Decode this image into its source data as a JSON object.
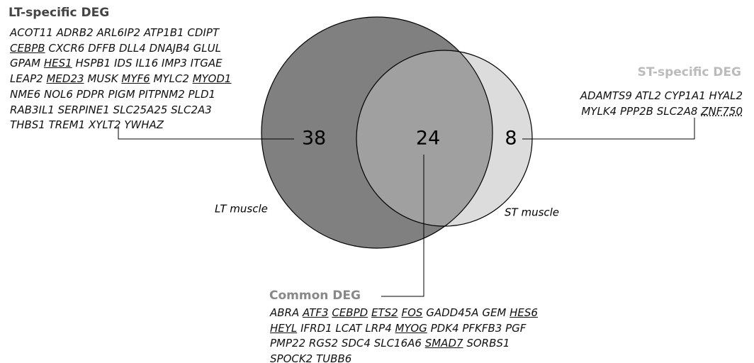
{
  "lt_specific": {
    "title": "LT-specific DEG",
    "count": 38,
    "lines": [
      [
        "ACOT11",
        "ADRB2",
        "ARL6IP2",
        "ATP1B1",
        "CDIPT"
      ],
      [
        {
          "name": "CEBPB",
          "mark": "underline"
        },
        "CXCR6",
        "DFFB",
        "DLL4",
        "DNAJB4",
        "GLUL"
      ],
      [
        "GPAM",
        {
          "name": "HES1",
          "mark": "underline"
        },
        "HSPB1",
        "IDS",
        "IL16",
        "IMP3",
        "ITGAE"
      ],
      [
        "LEAP2",
        {
          "name": "MED23",
          "mark": "underline"
        },
        "MUSK",
        {
          "name": "MYF6",
          "mark": "underline"
        },
        "MYLC2",
        {
          "name": "MYOD1",
          "mark": "underline"
        }
      ],
      [
        "NME6",
        "NOL6",
        "PDPR",
        "PIGM",
        "PITPNM2",
        "PLD1"
      ],
      [
        "RAB3IL1",
        "SERPINE1",
        "SLC25A25",
        "SLC2A3"
      ],
      [
        "THBS1",
        "TREM1",
        "XYLT2",
        "YWHAZ"
      ]
    ]
  },
  "st_specific": {
    "title": "ST-specific DEG",
    "count": 8,
    "lines": [
      [
        "ADAMTS9",
        "ATL2",
        "CYP1A1",
        "HYAL2"
      ],
      [
        "MYLK4",
        "PPP2B",
        "SLC2A8",
        {
          "name": "ZNF750",
          "mark": "dotted"
        }
      ]
    ]
  },
  "common": {
    "title": "Common DEG",
    "count": 24,
    "lines": [
      [
        "ABRA",
        {
          "name": "ATF3",
          "mark": "underline"
        },
        {
          "name": "CEBPD",
          "mark": "underline"
        },
        {
          "name": "ETS2",
          "mark": "underline"
        },
        {
          "name": "FOS",
          "mark": "underline"
        },
        "GADD45A",
        "GEM",
        {
          "name": "HES6",
          "mark": "underline"
        }
      ],
      [
        {
          "name": "HEYL",
          "mark": "underline"
        },
        "IFRD1",
        "LCAT",
        "LRP4",
        {
          "name": "MYOG",
          "mark": "underline"
        },
        "PDK4",
        "PFKFB3",
        "PGF"
      ],
      [
        "PMP22",
        "RGS2",
        "SDC4",
        "SLC16A6",
        {
          "name": "SMAD7",
          "mark": "underline"
        },
        "SORBS1"
      ],
      [
        "SPOCK2",
        "TUBB6"
      ]
    ]
  },
  "circles": {
    "lt_label": "LT muscle",
    "st_label": "ST muscle"
  }
}
